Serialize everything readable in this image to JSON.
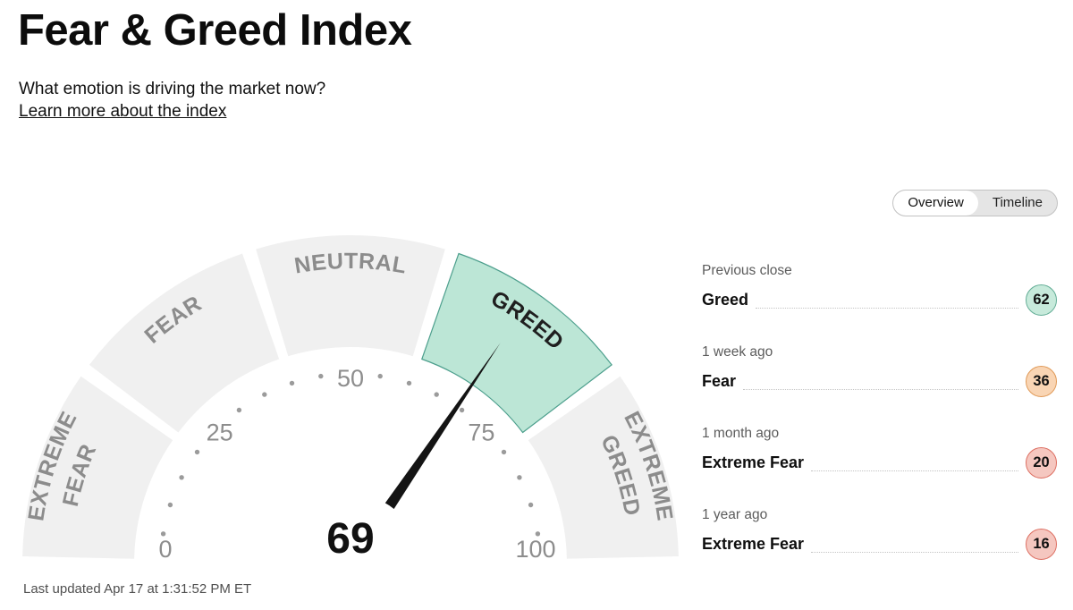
{
  "header": {
    "title": "Fear & Greed Index",
    "subtitle": "What emotion is driving the market now?",
    "learn_more": "Learn more about the index"
  },
  "tabs": [
    {
      "label": "Overview",
      "selected": true
    },
    {
      "label": "Timeline",
      "selected": false
    }
  ],
  "gauge": {
    "value": 69,
    "min": 0,
    "max": 100,
    "tick_numbers": [
      0,
      25,
      50,
      75,
      100
    ],
    "segments": [
      {
        "name": "Extreme Fear",
        "lines": [
          "EXTREME",
          "FEAR"
        ],
        "active": false
      },
      {
        "name": "Fear",
        "lines": [
          "FEAR"
        ],
        "active": false
      },
      {
        "name": "Neutral",
        "lines": [
          "NEUTRAL"
        ],
        "active": false
      },
      {
        "name": "Greed",
        "lines": [
          "GREED"
        ],
        "active": true
      },
      {
        "name": "Extreme Greed",
        "lines": [
          "EXTREME",
          "GREED"
        ],
        "active": false
      }
    ],
    "colors": {
      "segment_inactive": "#f0f0f0",
      "segment_active": "#bce6d6",
      "segment_active_border": "#4d9f8d",
      "label_inactive": "#8c8c8c",
      "label_active": "#1f1f1f",
      "needle": "#141414",
      "tick": "#9b9b9b",
      "number": "#8d8d8d",
      "value_text": "#111111"
    }
  },
  "history": [
    {
      "period": "Previous close",
      "sentiment": "Greed",
      "value": "62",
      "badge_bg": "#c7eadb",
      "badge_border": "#63ad96"
    },
    {
      "period": "1 week ago",
      "sentiment": "Fear",
      "value": "36",
      "badge_bg": "#f9d5b4",
      "badge_border": "#e09a58"
    },
    {
      "period": "1 month ago",
      "sentiment": "Extreme Fear",
      "value": "20",
      "badge_bg": "#f5c7c0",
      "badge_border": "#dd6f62"
    },
    {
      "period": "1 year ago",
      "sentiment": "Extreme Fear",
      "value": "16",
      "badge_bg": "#f5c7c0",
      "badge_border": "#dd6f62"
    }
  ],
  "footer": {
    "last_updated": "Last updated Apr 17 at 1:31:52 PM ET"
  },
  "chart_data": {
    "type": "gauge",
    "title": "Fear & Greed Index",
    "value": 69,
    "range": [
      0,
      100
    ],
    "tick_labels": [
      0,
      25,
      50,
      75,
      100
    ],
    "segments": [
      "Extreme Fear",
      "Fear",
      "Neutral",
      "Greed",
      "Extreme Greed"
    ],
    "active_segment": "Greed",
    "history": [
      {
        "period": "Previous close",
        "sentiment": "Greed",
        "value": 62
      },
      {
        "period": "1 week ago",
        "sentiment": "Fear",
        "value": 36
      },
      {
        "period": "1 month ago",
        "sentiment": "Extreme Fear",
        "value": 20
      },
      {
        "period": "1 year ago",
        "sentiment": "Extreme Fear",
        "value": 16
      }
    ]
  }
}
